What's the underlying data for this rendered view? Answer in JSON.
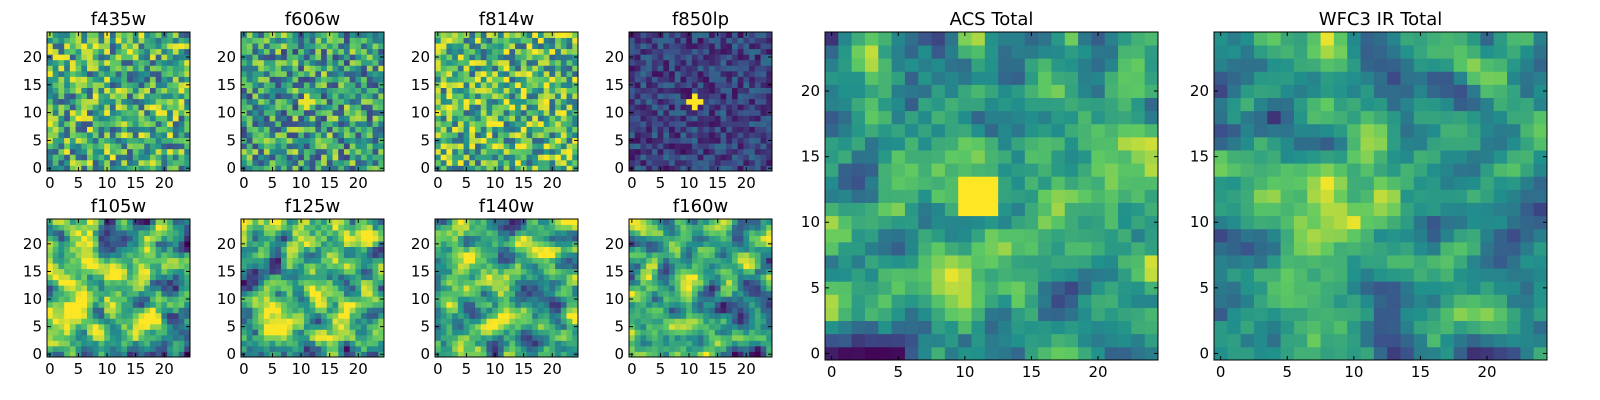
{
  "chart_data": [
    {
      "type": "heatmap",
      "title": "f435w",
      "seed": 11,
      "mode": "uniform",
      "xlim": [
        0,
        25
      ],
      "ylim": [
        0,
        25
      ],
      "xticks": [
        0,
        5,
        10,
        15,
        20
      ],
      "yticks": [
        0,
        5,
        10,
        15,
        20
      ]
    },
    {
      "type": "heatmap",
      "title": "f606w",
      "seed": 23,
      "mode": "uniform-source",
      "xlim": [
        0,
        25
      ],
      "ylim": [
        0,
        25
      ],
      "xticks": [
        0,
        5,
        10,
        15,
        20
      ],
      "yticks": [
        0,
        5,
        10,
        15,
        20
      ]
    },
    {
      "type": "heatmap",
      "title": "f814w",
      "seed": 37,
      "mode": "uniform-bright",
      "xlim": [
        0,
        25
      ],
      "ylim": [
        0,
        25
      ],
      "xticks": [
        0,
        5,
        10,
        15,
        20
      ],
      "yticks": [
        0,
        5,
        10,
        15,
        20
      ]
    },
    {
      "type": "heatmap",
      "title": "f850lp",
      "seed": 41,
      "mode": "dark-point",
      "xlim": [
        0,
        25
      ],
      "ylim": [
        0,
        25
      ],
      "xticks": [
        0,
        5,
        10,
        15,
        20
      ],
      "yticks": [
        0,
        5,
        10,
        15,
        20
      ]
    },
    {
      "type": "heatmap",
      "title": "f105w",
      "seed": 53,
      "mode": "smooth-bright",
      "xlim": [
        0,
        25
      ],
      "ylim": [
        0,
        25
      ],
      "xticks": [
        0,
        5,
        10,
        15,
        20
      ],
      "yticks": [
        0,
        5,
        10,
        15,
        20
      ]
    },
    {
      "type": "heatmap",
      "title": "f125w",
      "seed": 67,
      "mode": "smooth-bright",
      "xlim": [
        0,
        25
      ],
      "ylim": [
        0,
        25
      ],
      "xticks": [
        0,
        5,
        10,
        15,
        20
      ],
      "yticks": [
        0,
        5,
        10,
        15,
        20
      ]
    },
    {
      "type": "heatmap",
      "title": "f140w",
      "seed": 71,
      "mode": "smooth",
      "xlim": [
        0,
        25
      ],
      "ylim": [
        0,
        25
      ],
      "xticks": [
        0,
        5,
        10,
        15,
        20
      ],
      "yticks": [
        0,
        5,
        10,
        15,
        20
      ]
    },
    {
      "type": "heatmap",
      "title": "f160w",
      "seed": 83,
      "mode": "smooth-source",
      "xlim": [
        0,
        25
      ],
      "ylim": [
        0,
        25
      ],
      "xticks": [
        0,
        5,
        10,
        15,
        20
      ],
      "yticks": [
        0,
        5,
        10,
        15,
        20
      ]
    },
    {
      "type": "heatmap",
      "title": "ACS Total",
      "seed": 97,
      "mode": "mid-point",
      "xlim": [
        0,
        25
      ],
      "ylim": [
        0,
        25
      ],
      "xticks": [
        0,
        5,
        10,
        15,
        20
      ],
      "yticks": [
        0,
        5,
        10,
        15,
        20
      ]
    },
    {
      "type": "heatmap",
      "title": "WFC3 IR Total",
      "seed": 101,
      "mode": "mid-extended",
      "xlim": [
        0,
        25
      ],
      "ylim": [
        0,
        25
      ],
      "xticks": [
        0,
        5,
        10,
        15,
        20
      ],
      "yticks": [
        0,
        5,
        10,
        15,
        20
      ]
    }
  ],
  "colormap": [
    "#440154",
    "#3b528b",
    "#21918c",
    "#5ec962",
    "#fde725"
  ]
}
